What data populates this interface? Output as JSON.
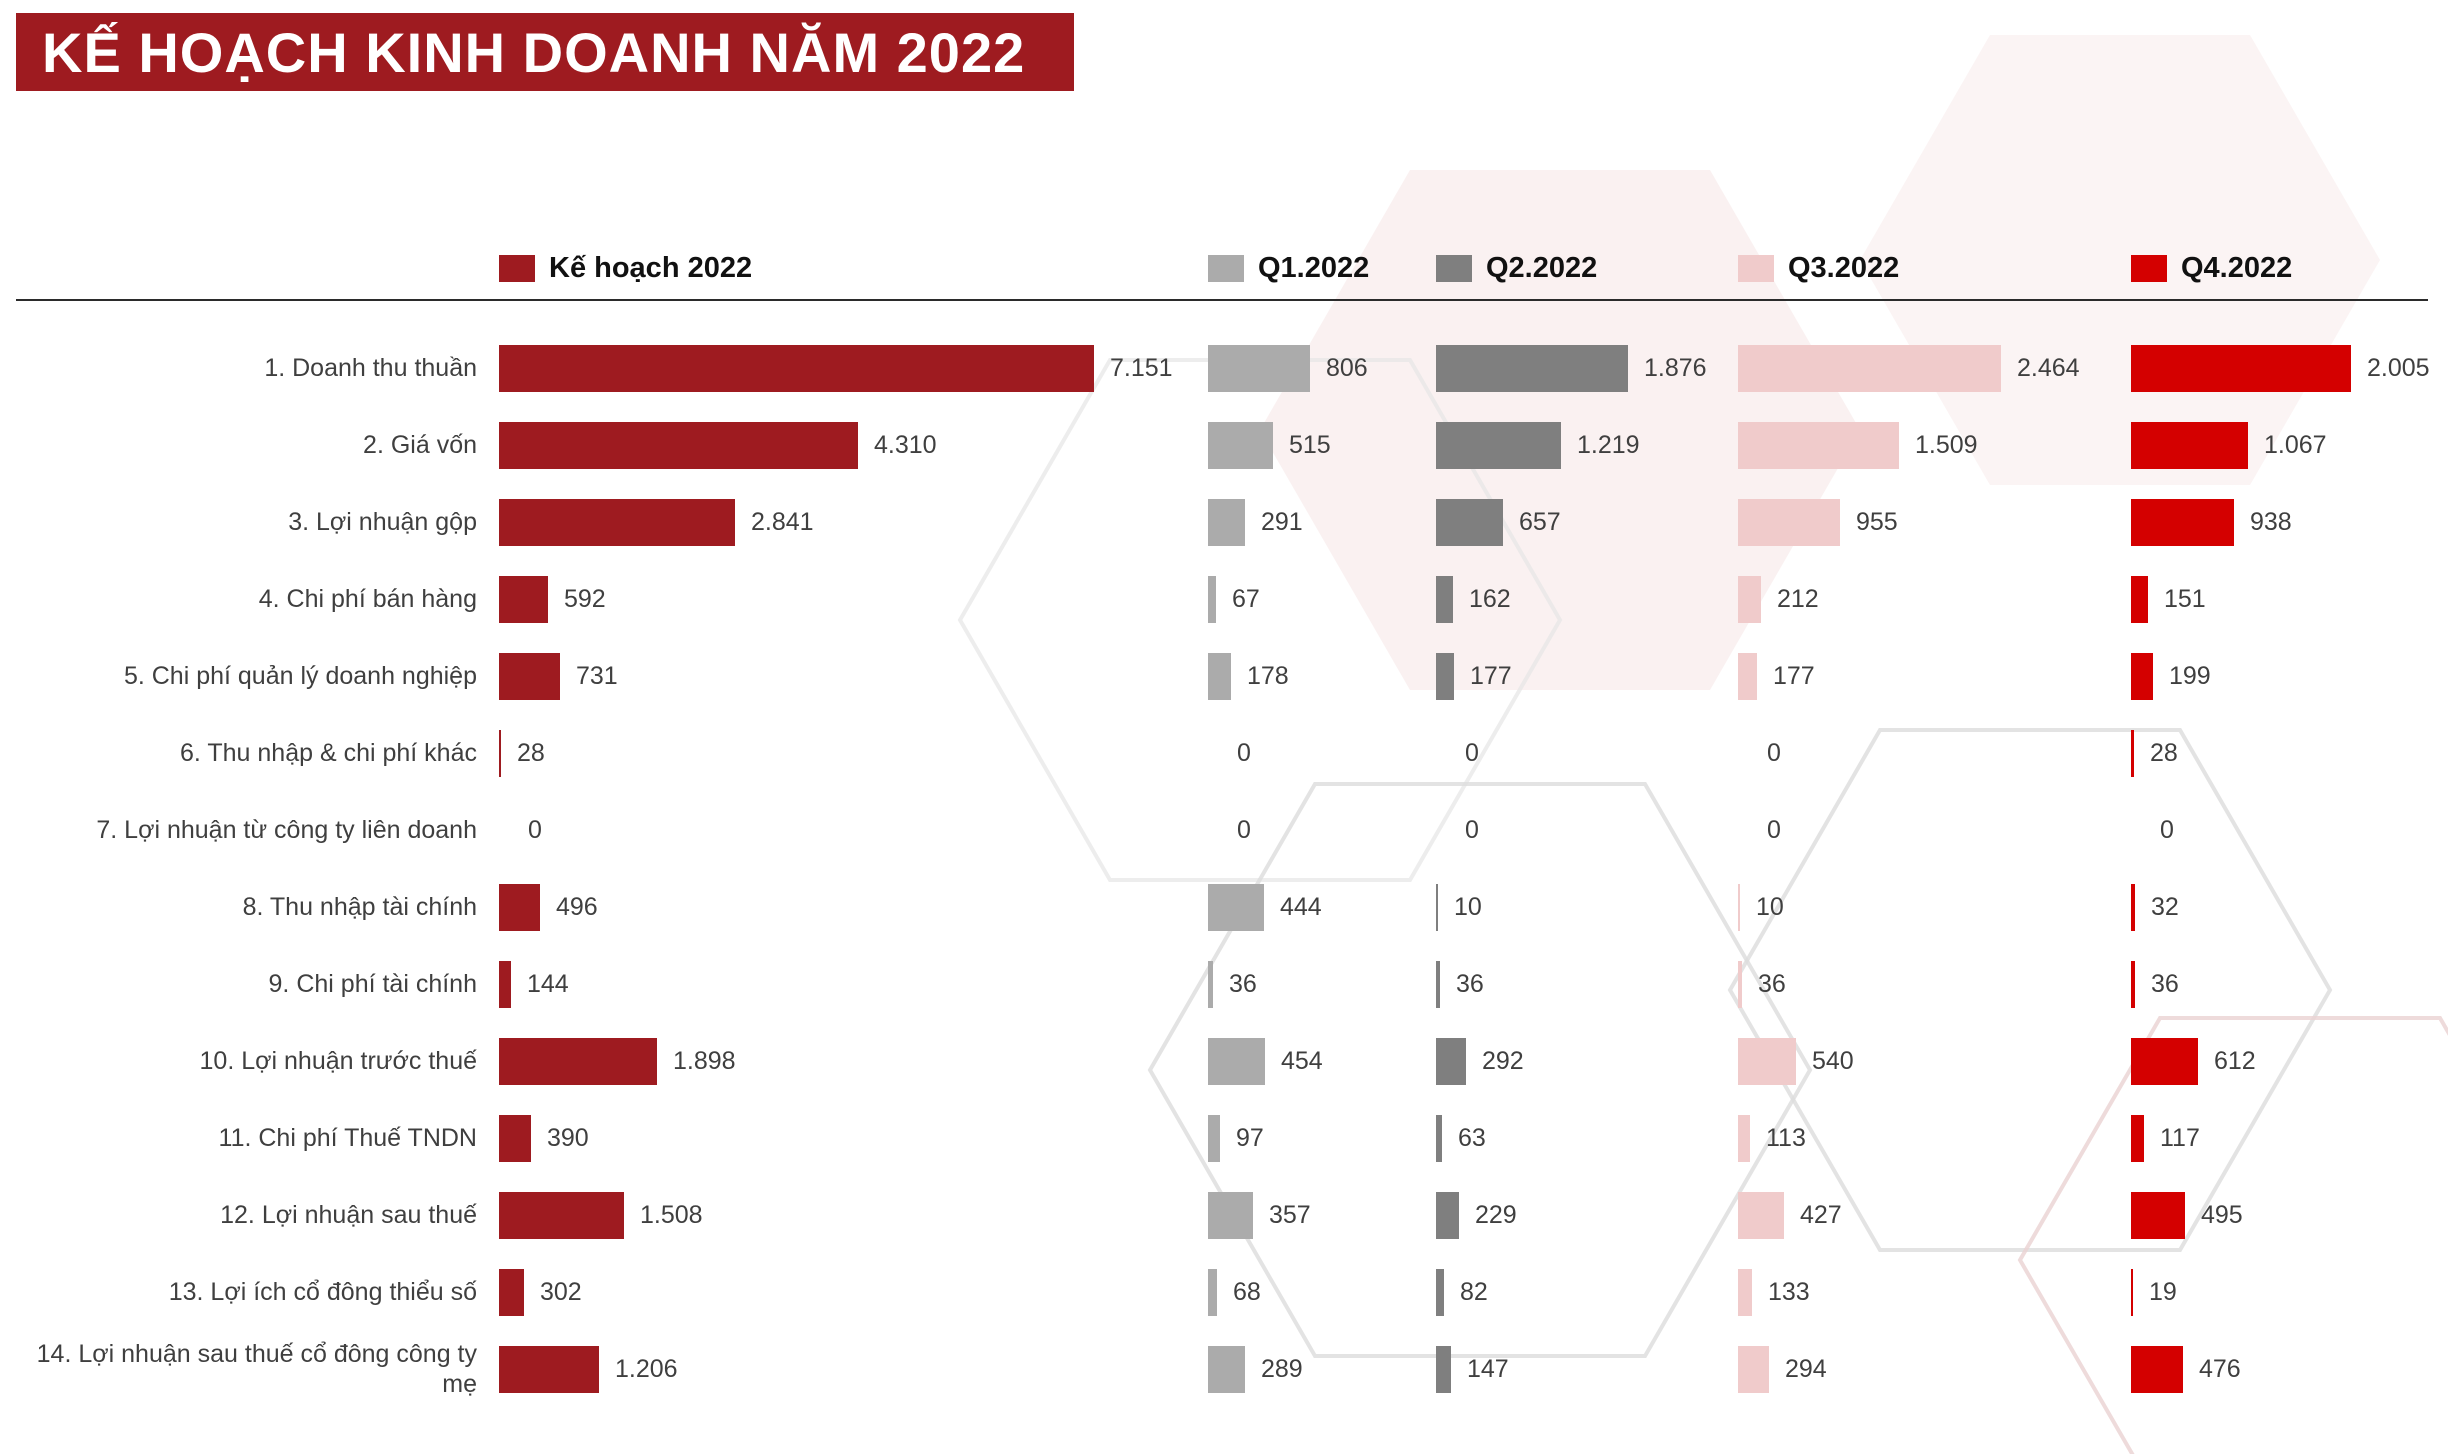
{
  "title": "KẾ HOẠCH KINH DOANH NĂM 2022",
  "colors": {
    "title_bg": "#9E1B20",
    "plan": "#9E1B20",
    "q1": "#ABABAB",
    "q2": "#7F7F7F",
    "q3": "#F0CBCB",
    "q4": "#D40000",
    "text": "#3F3F3F"
  },
  "legend": [
    {
      "id": "plan",
      "label": "Kế hoạch 2022"
    },
    {
      "id": "q1",
      "label": "Q1.2022"
    },
    {
      "id": "q2",
      "label": "Q2.2022"
    },
    {
      "id": "q3",
      "label": "Q3.2022"
    },
    {
      "id": "q4",
      "label": "Q4.2022"
    }
  ],
  "chart_data": {
    "type": "bar",
    "orientation": "horizontal",
    "title": "KẾ HOẠCH KINH DOANH NĂM 2022",
    "value_format": "dot thousands separator",
    "scaling": "each series column is scaled independently to its own maximum value",
    "legend_position": "top",
    "grid": false,
    "categories": [
      "1. Doanh thu thuần",
      "2. Giá vốn",
      "3. Lợi nhuận gộp",
      "4. Chi phí bán hàng",
      "5. Chi phí quản lý doanh nghiệp",
      "6. Thu nhập & chi phí khác",
      "7. Lợi nhuận từ công ty liên doanh",
      "8. Thu nhập tài chính",
      "9. Chi phí tài chính",
      "10. Lợi nhuận trước thuế",
      "11. Chi phí Thuế TNDN",
      "12. Lợi nhuận sau thuế",
      "13. Lợi ích cổ đông thiểu số",
      "14. Lợi nhuận sau thuế cổ đông công ty mẹ"
    ],
    "series": [
      {
        "id": "plan",
        "name": "Kế hoạch 2022",
        "color": "#9E1B20",
        "values": [
          7151,
          4310,
          2841,
          592,
          731,
          28,
          0,
          496,
          144,
          1898,
          390,
          1508,
          302,
          1206
        ],
        "display": [
          "7.151",
          "4.310",
          "2.841",
          "592",
          "731",
          "28",
          "0",
          "496",
          "144",
          "1.898",
          "390",
          "1.508",
          "302",
          "1.206"
        ]
      },
      {
        "id": "q1",
        "name": "Q1.2022",
        "color": "#ABABAB",
        "values": [
          806,
          515,
          291,
          67,
          178,
          0,
          0,
          444,
          36,
          454,
          97,
          357,
          68,
          289
        ],
        "display": [
          "806",
          "515",
          "291",
          "67",
          "178",
          "0",
          "0",
          "444",
          "36",
          "454",
          "97",
          "357",
          "68",
          "289"
        ]
      },
      {
        "id": "q2",
        "name": "Q2.2022",
        "color": "#7F7F7F",
        "values": [
          1876,
          1219,
          657,
          162,
          177,
          0,
          0,
          10,
          36,
          292,
          63,
          229,
          82,
          147
        ],
        "display": [
          "1.876",
          "1.219",
          "657",
          "162",
          "177",
          "0",
          "0",
          "10",
          "36",
          "292",
          "63",
          "229",
          "82",
          "147"
        ]
      },
      {
        "id": "q3",
        "name": "Q3.2022",
        "color": "#F0CBCB",
        "values": [
          2464,
          1509,
          955,
          212,
          177,
          0,
          0,
          10,
          36,
          540,
          113,
          427,
          133,
          294
        ],
        "display": [
          "2.464",
          "1.509",
          "955",
          "212",
          "177",
          "0",
          "0",
          "10",
          "36",
          "540",
          "113",
          "427",
          "133",
          "294"
        ]
      },
      {
        "id": "q4",
        "name": "Q4.2022",
        "color": "#D40000",
        "values": [
          2005,
          1067,
          938,
          151,
          199,
          28,
          0,
          32,
          36,
          612,
          117,
          495,
          19,
          476
        ],
        "display": [
          "2.005",
          "1.067",
          "938",
          "151",
          "199",
          "28",
          "0",
          "32",
          "36",
          "612",
          "117",
          "495",
          "19",
          "476"
        ]
      }
    ]
  }
}
